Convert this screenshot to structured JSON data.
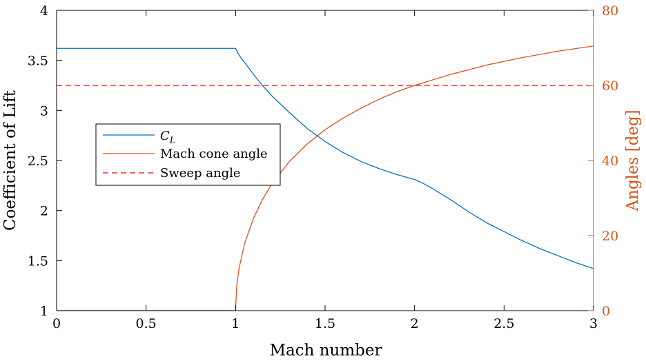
{
  "chart_data": {
    "type": "line",
    "xlabel": "Mach number",
    "ylabel_left": "Coefficient of Lift",
    "ylabel_right": "Angles [deg]",
    "xlim": [
      0,
      3
    ],
    "ylim_left": [
      1,
      4
    ],
    "ylim_right": [
      0,
      80
    ],
    "xticks": [
      "0",
      "0.5",
      "1",
      "1.5",
      "2",
      "2.5",
      "3"
    ],
    "yticks_left": [
      "1",
      "1.5",
      "2",
      "2.5",
      "3",
      "3.5",
      "4"
    ],
    "yticks_right": [
      "0",
      "20",
      "40",
      "60",
      "80"
    ],
    "grid": false,
    "legend_position": "middle-left",
    "colors": {
      "cl": "#0072BD",
      "angles": "#D95319",
      "sweep": "#FF0000"
    },
    "series": [
      {
        "name": "C_L",
        "legend_main": "C",
        "legend_sub": "L",
        "axis": "left",
        "style": "solid",
        "color": "#0072BD",
        "x": [
          0,
          0.25,
          0.5,
          0.75,
          1.0,
          1.02,
          1.05,
          1.1,
          1.15,
          1.2,
          1.3,
          1.4,
          1.5,
          1.6,
          1.7,
          1.8,
          1.9,
          2.0,
          2.05,
          2.1,
          2.2,
          2.3,
          2.4,
          2.5,
          2.6,
          2.7,
          2.8,
          2.9,
          3.0
        ],
        "y": [
          3.62,
          3.62,
          3.62,
          3.62,
          3.62,
          3.55,
          3.48,
          3.36,
          3.25,
          3.15,
          2.98,
          2.82,
          2.69,
          2.58,
          2.49,
          2.42,
          2.36,
          2.31,
          2.27,
          2.22,
          2.11,
          1.99,
          1.88,
          1.79,
          1.7,
          1.62,
          1.55,
          1.48,
          1.42
        ]
      },
      {
        "name": "Mach cone angle",
        "axis": "right",
        "style": "solid",
        "color": "#D95319",
        "x": [
          0,
          0.5,
          0.999,
          1.0,
          1.005,
          1.01,
          1.02,
          1.05,
          1.1,
          1.15,
          1.2,
          1.3,
          1.4,
          1.5,
          1.6,
          1.7,
          1.8,
          1.9,
          2.0,
          2.2,
          2.4,
          2.6,
          2.8,
          3.0
        ],
        "y": [
          0,
          0,
          0,
          0,
          5.7,
          8.1,
          11.4,
          17.8,
          24.6,
          29.6,
          33.6,
          39.7,
          44.4,
          48.2,
          51.3,
          53.9,
          56.3,
          58.3,
          60.0,
          62.9,
          65.4,
          67.4,
          69.1,
          70.5
        ]
      },
      {
        "name": "Sweep angle",
        "axis": "right",
        "style": "dashed",
        "color": "#FF0000",
        "x": [
          0,
          3
        ],
        "y": [
          60,
          60
        ]
      }
    ]
  }
}
